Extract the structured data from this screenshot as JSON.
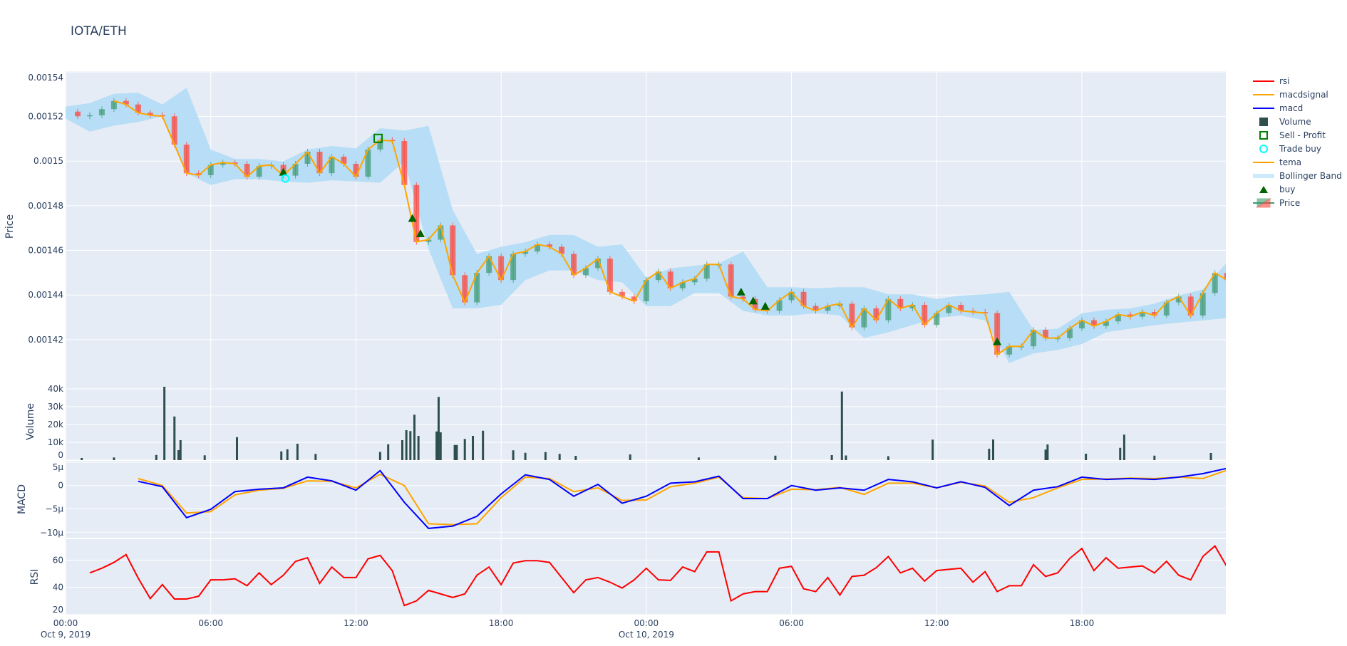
{
  "title": "IOTA/ETH",
  "colors": {
    "plot_bg": "#e5ecf6",
    "grid": "#ffffff",
    "increasing": "#3D9970",
    "decreasing": "#FF4136",
    "band": "#b4ddf5",
    "tema": "#FFA500",
    "macd": "#0000FF",
    "macdsignal": "#FFA500",
    "rsi": "#FF0000",
    "volume": "#2F4F4F",
    "buy": "#006400",
    "sell_profit": "#008000",
    "trade_buy": "#00FFFF"
  },
  "legend": {
    "placement": "right",
    "items": [
      {
        "label": "rsi",
        "icon": "line",
        "color": "#FF0000"
      },
      {
        "label": "macdsignal",
        "icon": "line",
        "color": "#FFA500"
      },
      {
        "label": "macd",
        "icon": "line",
        "color": "#0000FF"
      },
      {
        "label": "Volume",
        "icon": "filled-square",
        "color": "#2F4F4F"
      },
      {
        "label": "Sell - Profit",
        "icon": "open-square",
        "color": "#008000"
      },
      {
        "label": "Trade buy",
        "icon": "open-circle",
        "color": "#00FFFF"
      },
      {
        "label": "tema",
        "icon": "line",
        "color": "#FFA500"
      },
      {
        "label": "Bollinger Band",
        "icon": "band",
        "color": "#b4ddf5"
      },
      {
        "label": "buy",
        "icon": "triangle-up",
        "color": "#006400"
      },
      {
        "label": "Price",
        "icon": "candlestick",
        "color": "#3D9970"
      }
    ]
  },
  "x_axis": {
    "range": [
      "2019-10-09 00:00",
      "2019-10-10 23:57"
    ],
    "ticks": [
      {
        "time": "2019-10-09 00:00",
        "label": "00:00",
        "sublabel": "Oct 9, 2019"
      },
      {
        "time": "2019-10-09 06:00",
        "label": "06:00",
        "sublabel": ""
      },
      {
        "time": "2019-10-09 12:00",
        "label": "12:00",
        "sublabel": ""
      },
      {
        "time": "2019-10-09 18:00",
        "label": "18:00",
        "sublabel": ""
      },
      {
        "time": "2019-10-10 00:00",
        "label": "00:00",
        "sublabel": "Oct 10, 2019"
      },
      {
        "time": "2019-10-10 06:00",
        "label": "06:00",
        "sublabel": ""
      },
      {
        "time": "2019-10-10 12:00",
        "label": "12:00",
        "sublabel": ""
      },
      {
        "time": "2019-10-10 18:00",
        "label": "18:00",
        "sublabel": ""
      }
    ]
  },
  "chart_data": [
    {
      "type": "candlestick",
      "panel": "price",
      "ylabel": "Price",
      "ylim": [
        0.0014008,
        0.0015403
      ],
      "grid": true,
      "yticks": [
        {
          "value": 0.00142,
          "label": "0.00142"
        },
        {
          "value": 0.00144,
          "label": "0.00144"
        },
        {
          "value": 0.00146,
          "label": "0.00146"
        },
        {
          "value": 0.00148,
          "label": "0.00148"
        },
        {
          "value": 0.0015,
          "label": "0.0015"
        },
        {
          "value": 0.00152,
          "label": "0.00152"
        },
        {
          "value": 0.00154,
          "label": "0.00154"
        }
      ],
      "price": {
        "name": "Price",
        "start": "2019-10-09 00:00",
        "interval_minutes": 30,
        "close": [
          0.0015222,
          0.0015201,
          0.0015206,
          0.0015233,
          0.001527,
          0.0015254,
          0.0015217,
          0.0015206,
          0.0015201,
          0.0015074,
          0.0014946,
          0.0014937,
          0.0014983,
          0.0014994,
          0.0014988,
          0.001493,
          0.0014978,
          0.0014983,
          0.0014935,
          0.0014988,
          0.0015042,
          0.0014946,
          0.001502,
          0.0014988,
          0.001493,
          0.0015052,
          0.0015095,
          0.001509,
          0.0014893,
          0.0014638,
          0.0014648,
          0.0014712,
          0.0014489,
          0.0014367,
          0.0014499,
          0.0014574,
          0.0014467,
          0.0014584,
          0.0014595,
          0.0014627,
          0.0014616,
          0.0014584,
          0.0014489,
          0.0014521,
          0.0014563,
          0.0014414,
          0.0014393,
          0.0014372,
          0.0014467,
          0.0014505,
          0.001443,
          0.0014457,
          0.0014473,
          0.0014537,
          0.0014537,
          0.0014393,
          0.0014382,
          0.0014335,
          0.0014329,
          0.0014377,
          0.0014414,
          0.0014351,
          0.0014329,
          0.0014351,
          0.0014361,
          0.0014255,
          0.001434,
          0.0014287,
          0.0014382,
          0.001434,
          0.0014356,
          0.0014266,
          0.0014319,
          0.0014356,
          0.0014329,
          0.0014324,
          0.0014319,
          0.0014133,
          0.001417,
          0.001417,
          0.0014244,
          0.0014207,
          0.0014207,
          0.001425,
          0.0014287,
          0.0014261,
          0.0014282,
          0.0014313,
          0.0014303,
          0.0014324,
          0.0014308,
          0.0014367,
          0.0014393,
          0.0014308,
          0.0014409,
          0.0014499,
          0.0014467
        ]
      },
      "tema": {
        "name": "tema",
        "start": "2019-10-09 02:00"
      },
      "bollinger": {
        "name": "Bollinger Band",
        "start": "2019-10-09 00:00",
        "interval_minutes": 60,
        "upper": [
          0.0015244,
          0.001526,
          0.0015302,
          0.0015307,
          0.0015254,
          0.0015329,
          0.0015052,
          0.001501,
          0.001501,
          0.0014999,
          0.0015052,
          0.0015068,
          0.0015057,
          0.0015148,
          0.0015137,
          0.0015158,
          0.0014781,
          0.0014584,
          0.0014616,
          0.0014637,
          0.0014669,
          0.0014669,
          0.0014616,
          0.0014627,
          0.0014478,
          0.001452,
          0.0014531,
          0.0014542,
          0.0014595,
          0.0014435,
          0.0014435,
          0.001443,
          0.0014435,
          0.0014435,
          0.0014403,
          0.0014403,
          0.0014382,
          0.0014398,
          0.0014403,
          0.0014414,
          0.0014244,
          0.0014249,
          0.0014318,
          0.0014334,
          0.001434,
          0.0014361,
          0.0014398,
          0.0014425,
          0.0014547
        ],
        "lower": [
          0.0015191,
          0.0015132,
          0.0015159,
          0.0015175,
          0.0015201,
          0.0014946,
          0.0014893,
          0.0014919,
          0.0014919,
          0.0014909,
          0.0014903,
          0.0014914,
          0.0014909,
          0.0014903,
          0.0014999,
          0.0014606,
          0.001434,
          0.001434,
          0.0014356,
          0.0014467,
          0.001451,
          0.001451,
          0.0014467,
          0.0014457,
          0.001435,
          0.001435,
          0.0014409,
          0.0014409,
          0.0014329,
          0.0014308,
          0.0014308,
          0.0014318,
          0.0014308,
          0.0014207,
          0.0014233,
          0.0014265,
          0.0014297,
          0.0014308,
          0.0014286,
          0.0014095,
          0.0014138,
          0.0014154,
          0.001418,
          0.0014233,
          0.0014249,
          0.0014265,
          0.0014276,
          0.0014286,
          0.0014297
        ]
      },
      "buy": {
        "name": "buy",
        "points": [
          [
            "2019-10-09 09:00",
            0.0014951
          ],
          [
            "2019-10-09 14:20",
            0.0014744
          ],
          [
            "2019-10-09 14:40",
            0.0014675
          ],
          [
            "2019-10-10 03:55",
            0.0014414
          ],
          [
            "2019-10-10 04:25",
            0.0014374
          ],
          [
            "2019-10-10 04:55",
            0.001435
          ],
          [
            "2019-10-10 14:30",
            0.0014191
          ]
        ]
      },
      "trade_buy": {
        "name": "Trade buy",
        "points": [
          [
            "2019-10-09 09:05",
            0.0014922
          ]
        ]
      },
      "sell_profit": {
        "name": "Sell - Profit",
        "points": [
          [
            "2019-10-09 12:55",
            0.0015102
          ]
        ]
      }
    },
    {
      "type": "bar",
      "panel": "volume",
      "ylabel": "Volume",
      "ylim": [
        0,
        43600
      ],
      "grid": true,
      "yticks": [
        {
          "value": 0,
          "label": "0"
        },
        {
          "value": 10000,
          "label": "10k"
        },
        {
          "value": 20000,
          "label": "20k"
        },
        {
          "value": 30000,
          "label": "30k"
        },
        {
          "value": 40000,
          "label": "40k"
        }
      ],
      "series": [
        {
          "name": "Volume",
          "points": [
            [
              "2019-10-09 00:40",
              1200
            ],
            [
              "2019-10-09 02:00",
              1500
            ],
            [
              "2019-10-09 03:45",
              2900
            ],
            [
              "2019-10-09 04:05",
              41200
            ],
            [
              "2019-10-09 04:30",
              24500
            ],
            [
              "2019-10-09 04:40",
              5600
            ],
            [
              "2019-10-09 04:45",
              11200
            ],
            [
              "2019-10-09 05:45",
              2700
            ],
            [
              "2019-10-09 07:05",
              12900
            ],
            [
              "2019-10-09 08:55",
              4900
            ],
            [
              "2019-10-09 09:10",
              6100
            ],
            [
              "2019-10-09 09:35",
              9200
            ],
            [
              "2019-10-09 10:20",
              3500
            ],
            [
              "2019-10-09 13:00",
              4600
            ],
            [
              "2019-10-09 13:20",
              8900
            ],
            [
              "2019-10-09 13:55",
              11200
            ],
            [
              "2019-10-09 14:05",
              16800
            ],
            [
              "2019-10-09 14:15",
              16300
            ],
            [
              "2019-10-09 14:25",
              25500
            ],
            [
              "2019-10-09 14:35",
              13600
            ],
            [
              "2019-10-09 15:20",
              16100
            ],
            [
              "2019-10-09 15:25",
              35500
            ],
            [
              "2019-10-09 15:30",
              15600
            ],
            [
              "2019-10-09 16:05",
              8500
            ],
            [
              "2019-10-09 16:10",
              8500
            ],
            [
              "2019-10-09 16:30",
              11900
            ],
            [
              "2019-10-09 16:50",
              13600
            ],
            [
              "2019-10-09 17:15",
              16500
            ],
            [
              "2019-10-09 18:30",
              5500
            ],
            [
              "2019-10-09 19:00",
              4100
            ],
            [
              "2019-10-09 19:50",
              4500
            ],
            [
              "2019-10-09 20:25",
              3500
            ],
            [
              "2019-10-09 21:05",
              2400
            ],
            [
              "2019-10-09 23:20",
              3200
            ],
            [
              "2019-10-10 02:10",
              1500
            ],
            [
              "2019-10-10 05:20",
              2500
            ],
            [
              "2019-10-10 07:40",
              2800
            ],
            [
              "2019-10-10 08:05",
              38500
            ],
            [
              "2019-10-10 08:15",
              2600
            ],
            [
              "2019-10-10 10:00",
              2200
            ],
            [
              "2019-10-10 11:50",
              11500
            ],
            [
              "2019-10-10 14:10",
              6400
            ],
            [
              "2019-10-10 14:20",
              11600
            ],
            [
              "2019-10-10 16:30",
              5900
            ],
            [
              "2019-10-10 16:35",
              8800
            ],
            [
              "2019-10-10 18:10",
              3600
            ],
            [
              "2019-10-10 19:35",
              6900
            ],
            [
              "2019-10-10 19:45",
              14300
            ],
            [
              "2019-10-10 21:00",
              2500
            ],
            [
              "2019-10-10 23:20",
              4000
            ]
          ]
        }
      ]
    },
    {
      "type": "line",
      "panel": "macd",
      "ylabel": "MACD",
      "ylim": [
        -1.12e-05,
        5.3e-06
      ],
      "grid": true,
      "yticks": [
        {
          "value": 5e-06,
          "label": "5µ"
        },
        {
          "value": 0,
          "label": "0"
        },
        {
          "value": -5e-06,
          "label": "−5µ"
        },
        {
          "value": -1e-05,
          "label": "−10µ"
        }
      ],
      "start": "2019-10-09 03:00",
      "interval_minutes": 60,
      "series": [
        {
          "name": "macd",
          "color": "#0000FF",
          "values": [
            9e-07,
            -2.5e-07,
            -6.9e-06,
            -5.1e-06,
            -1.3e-06,
            -8e-07,
            -5e-07,
            1.8e-06,
            1e-06,
            -1e-06,
            3.2e-06,
            -3.6e-06,
            -9.2e-06,
            -8.7e-06,
            -6.6e-06,
            -1.8e-06,
            2.3e-06,
            1.3e-06,
            -2.3e-06,
            2.5e-07,
            -3.8e-06,
            -2.3e-06,
            5e-07,
            8e-07,
            2e-06,
            -2.8e-06,
            -2.8e-06,
            0,
            -1e-06,
            -5e-07,
            -1e-06,
            1.3e-06,
            8e-07,
            -5e-07,
            8e-07,
            -4e-07,
            -4.3e-06,
            -1e-06,
            -2.5e-07,
            1.8e-06,
            1.3e-06,
            1.5e-06,
            1.3e-06,
            1.8e-06,
            2.55e-06,
            3.7e-06
          ]
        },
        {
          "name": "macdsignal",
          "color": "#FFA500",
          "values": [
            1.5e-06,
            0,
            -5.9e-06,
            -5.6e-06,
            -2e-06,
            -1e-06,
            -6e-07,
            1e-06,
            9e-07,
            -5e-07,
            2.4e-06,
            0,
            -8.2e-06,
            -8.4e-06,
            -8.2e-06,
            -2.6e-06,
            1.8e-06,
            1.5e-06,
            -1.3e-06,
            -5e-07,
            -3.2e-06,
            -3.1e-06,
            -2.5e-07,
            5e-07,
            1.8e-06,
            -2.6e-06,
            -2.8e-06,
            -8e-07,
            -9e-07,
            -4e-07,
            -1.9e-06,
            5e-07,
            5e-07,
            -5e-07,
            7e-07,
            -1e-07,
            -3.6e-06,
            -2.6e-06,
            -5e-07,
            1.3e-06,
            1.4e-06,
            1.6e-06,
            1.5e-06,
            1.8e-06,
            1.5e-06,
            3.3e-06
          ]
        }
      ]
    },
    {
      "type": "line",
      "panel": "rsi",
      "ylabel": "RSI",
      "ylim": [
        20,
        75.3
      ],
      "grid": true,
      "yticks": [
        {
          "value": 20,
          "label": "20"
        },
        {
          "value": 40,
          "label": "40"
        },
        {
          "value": 60,
          "label": "60"
        }
      ],
      "start": "2019-10-09 01:00",
      "interval_minutes": 30,
      "series": [
        {
          "name": "rsi",
          "color": "#FF0000",
          "values": [
            50.6,
            54,
            58.3,
            64,
            46.8,
            31.8,
            42,
            31.5,
            31.5,
            33.5,
            45.5,
            45.5,
            46.3,
            41.2,
            50.6,
            42,
            48.9,
            59,
            61.7,
            42.9,
            54.9,
            47.2,
            47.2,
            60.9,
            63.4,
            52.3,
            26.7,
            30.1,
            37.8,
            35.2,
            32.6,
            35.2,
            48.9,
            54.9,
            42,
            57.8,
            59.5,
            59.5,
            58.3,
            47.2,
            36.1,
            45.5,
            47.2,
            43.8,
            39.5,
            45.5,
            54,
            45.5,
            45.1,
            54.9,
            51.5,
            66,
            66,
            30.1,
            35.2,
            36.9,
            36.9,
            54,
            55.4,
            39,
            36.9,
            47.2,
            34.4,
            48,
            48.9,
            54.4,
            62.6,
            50.6,
            54,
            44.6,
            52.3,
            53.2,
            54,
            43.8,
            51.5,
            36.9,
            41.2,
            41.2,
            56.6,
            48,
            50.6,
            61.2,
            68.5,
            52.3,
            61.7,
            54,
            54.9,
            55.7,
            50.6,
            59.1,
            48.9,
            45.5,
            62.6,
            70.3,
            54.9
          ]
        }
      ]
    }
  ]
}
